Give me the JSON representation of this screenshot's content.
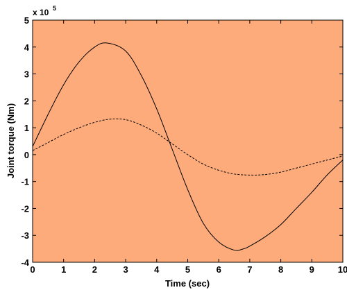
{
  "chart_data": {
    "type": "line",
    "xlabel": "Time (sec)",
    "ylabel": "Joint torque (Nm)",
    "y_multiplier_label": "x 10",
    "y_multiplier_exponent": "5",
    "xlim": [
      0,
      10
    ],
    "ylim": [
      -4,
      5
    ],
    "x_ticks": [
      "0",
      "1",
      "2",
      "3",
      "4",
      "5",
      "6",
      "7",
      "8",
      "9",
      "10"
    ],
    "y_ticks": [
      "5",
      "4",
      "3",
      "2",
      "1",
      "0",
      "-1",
      "-2",
      "-3",
      "-4"
    ],
    "background_color": "#FEAB7B",
    "grid": false,
    "series": [
      {
        "style": "solid",
        "x": [
          0,
          0.5,
          1,
          1.5,
          2,
          2.4,
          3,
          3.5,
          4,
          4.5,
          5,
          5.5,
          6,
          6.5,
          6.8,
          7,
          7.5,
          8,
          8.5,
          9,
          9.5,
          10
        ],
        "y": [
          0.3,
          1.5,
          2.6,
          3.45,
          4.0,
          4.15,
          3.85,
          2.95,
          1.7,
          0.2,
          -1.3,
          -2.55,
          -3.25,
          -3.55,
          -3.5,
          -3.4,
          -3.05,
          -2.6,
          -2.0,
          -1.4,
          -0.75,
          -0.2
        ]
      },
      {
        "style": "dashed",
        "x": [
          0,
          0.5,
          1,
          1.5,
          2,
          2.5,
          3,
          3.5,
          4,
          4.5,
          5,
          5.5,
          6,
          6.5,
          7,
          7.5,
          8,
          8.5,
          9,
          9.5,
          10
        ],
        "y": [
          0.15,
          0.45,
          0.75,
          1.0,
          1.2,
          1.32,
          1.3,
          1.1,
          0.8,
          0.4,
          0.0,
          -0.35,
          -0.58,
          -0.72,
          -0.76,
          -0.74,
          -0.65,
          -0.5,
          -0.35,
          -0.2,
          -0.05
        ]
      }
    ]
  }
}
